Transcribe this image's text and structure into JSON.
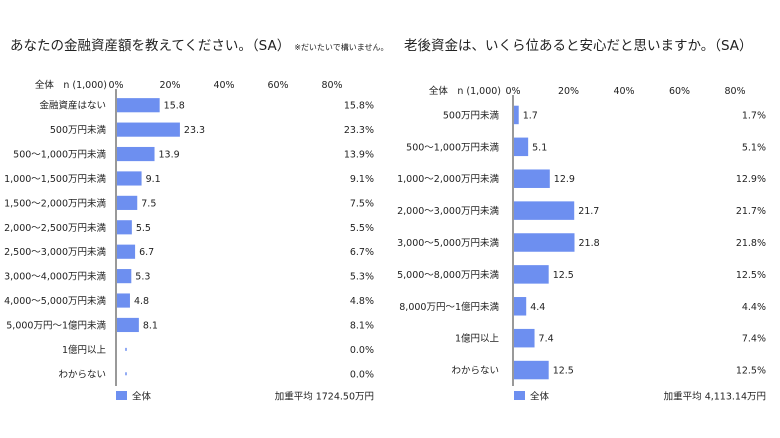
{
  "chart_data": [
    {
      "type": "bar",
      "orientation": "horizontal",
      "title": "あなたの金融資産額を教えてください。（SA）",
      "title_note": "※だいたいで構いません。",
      "sample_label": "全体　n (1,000)",
      "ticks": [
        "0%",
        "20%",
        "40%",
        "60%",
        "80%"
      ],
      "xlim": [
        0,
        80
      ],
      "categories": [
        "金融資産はない",
        "500万円未満",
        "500～1,000万円未満",
        "1,000～1,500万円未満",
        "1,500～2,000万円未満",
        "2,000～2,500万円未満",
        "2,500～3,000万円未満",
        "3,000～4,000万円未満",
        "4,000～5,000万円未満",
        "5,000万円～1億円未満",
        "1億円以上",
        "わからない"
      ],
      "series": [
        {
          "name": "全体",
          "values": [
            15.8,
            23.3,
            13.9,
            9.1,
            7.5,
            5.5,
            6.7,
            5.3,
            4.8,
            8.1,
            0.0,
            0.0
          ],
          "color": "#6d8ff0"
        }
      ],
      "bar_labels": [
        "15.8",
        "23.3",
        "13.9",
        "9.1",
        "7.5",
        "5.5",
        "6.7",
        "5.3",
        "4.8",
        "8.1",
        "",
        ""
      ],
      "right_labels": [
        "15.8%",
        "23.3%",
        "13.9%",
        "9.1%",
        "7.5%",
        "5.5%",
        "6.7%",
        "5.3%",
        "4.8%",
        "8.1%",
        "0.0%",
        "0.0%"
      ],
      "legend_position": "bottom-left",
      "weighted_average": "加重平均 1724.50万円"
    },
    {
      "type": "bar",
      "orientation": "horizontal",
      "title": "老後資金は、いくら位あると安心だと思いますか。（SA）",
      "title_note": "",
      "sample_label": "全体　n (1,000)",
      "ticks": [
        "0%",
        "20%",
        "40%",
        "60%",
        "80%"
      ],
      "xlim": [
        0,
        80
      ],
      "categories": [
        "500万円未満",
        "500～1,000万円未満",
        "1,000～2,000万円未満",
        "2,000～3,000万円未満",
        "3,000～5,000万円未満",
        "5,000～8,000万円未満",
        "8,000万円～1億円未満",
        "1億円以上",
        "わからない"
      ],
      "series": [
        {
          "name": "全体",
          "values": [
            1.7,
            5.1,
            12.9,
            21.7,
            21.8,
            12.5,
            4.4,
            7.4,
            12.5
          ],
          "color": "#6d8ff0"
        }
      ],
      "bar_labels": [
        "1.7",
        "5.1",
        "12.9",
        "21.7",
        "21.8",
        "12.5",
        "4.4",
        "7.4",
        "12.5"
      ],
      "right_labels": [
        "1.7%",
        "5.1%",
        "12.9%",
        "21.7%",
        "21.8%",
        "12.5%",
        "4.4%",
        "7.4%",
        "12.5%"
      ],
      "legend_position": "bottom-left",
      "weighted_average": "加重平均 4,113.14万円"
    }
  ]
}
